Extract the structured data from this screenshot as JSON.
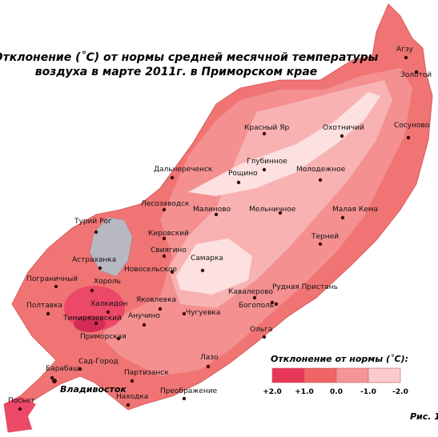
{
  "title": [
    "Отклонение (˚С) от нормы средней  месячной температуры",
    "воздуха  в марте 2011г. в Приморском крае"
  ],
  "stations": [
    "Агзу",
    "Золотой",
    "Сосуново",
    "Охотничий",
    "Красный Яр",
    "Глубинное",
    "Дальнереченск",
    "Рощино",
    "Молодежное",
    "Лесозаводск",
    "Малиново",
    "Мельничное",
    "Малая Кема",
    "Турий Рог",
    "Кировский",
    "Терней",
    "Астраханка",
    "Свиягино",
    "Самарка",
    "Новосельское",
    "Пограничный",
    "Хороль",
    "Рудная Пристань",
    "Кавалерово",
    "Богополь",
    "Полтавка",
    "Халкидон",
    "Яковлевка",
    "Тимирязевский",
    "Анучино",
    "Чугуевка",
    "Ольга",
    "Приморская",
    "Лазо",
    "Сад-Город",
    "Барабаш",
    "Партизанск",
    "Находка",
    "Преображение",
    "Посьет"
  ],
  "capital": "Владивосток",
  "legend": {
    "title": "Отклонение от нормы (˚С):",
    "labels": [
      "+2.0",
      "+1.0",
      "0.0",
      "-1.0",
      "-2.0"
    ]
  },
  "caption": "Рис. 1"
}
